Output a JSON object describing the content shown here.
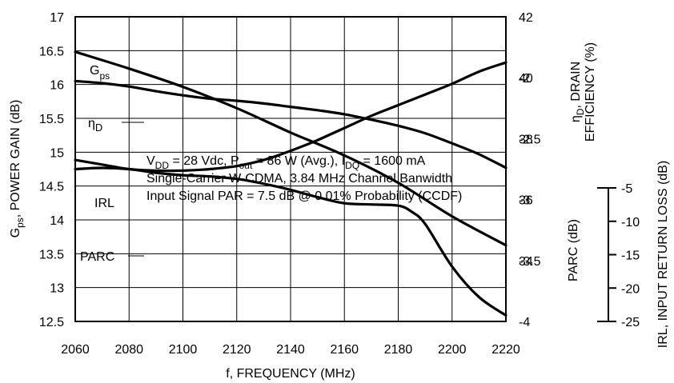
{
  "chart_data": {
    "type": "line",
    "xlabel": "f, FREQUENCY (MHz)",
    "x_ticks": [
      "2060",
      "2080",
      "2100",
      "2120",
      "2140",
      "2160",
      "2180",
      "2200",
      "2220"
    ],
    "xlim": [
      2060,
      2220
    ],
    "left_axis": {
      "label_main": "G",
      "label_sub": "ps",
      "label_rest": ", POWER GAIN (dB)",
      "ylim": [
        12.5,
        17
      ],
      "ticks": [
        "12.5",
        "13",
        "13.5",
        "14",
        "14.5",
        "15",
        "15.5",
        "16",
        "16.5",
        "17"
      ]
    },
    "right_axis_upper": {
      "label_line1_main": "η",
      "label_line1_sub": "D",
      "label_line1_rest": ", DRAIN",
      "label_line2": "EFFICIENCY (%)",
      "ylim": [
        32,
        42
      ],
      "ticks": [
        "34",
        "36",
        "38",
        "40",
        "42"
      ]
    },
    "right_axis_lower": {
      "label": "PARC (dB)",
      "ylim": [
        -4,
        -1.5
      ],
      "ticks": [
        "-2",
        "-2.5",
        "-3",
        "-3.5",
        "-4"
      ]
    },
    "irl_axis": {
      "label": "IRL, INPUT RETURN LOSS (dB)",
      "ylim": [
        -25,
        -5
      ],
      "ticks": [
        "-5",
        "-10",
        "-15",
        "-20",
        "-25"
      ]
    },
    "annotation": {
      "line1": {
        "a": "V",
        "a_sub": "DD",
        "b": " = 28 Vdc, P",
        "b_sub": "out",
        "c": " = 86 W (Avg.), I",
        "c_sub": "DQ",
        "d": " = 1600 mA"
      },
      "line2": "Single-Carrier W-CDMA, 3.84 MHz Channel Banwidth",
      "line3": "Input Signal PAR = 7.5 dB @ 0.01% Probability (CCDF)"
    },
    "series": [
      {
        "name": "G",
        "name_sub": "ps",
        "axis": "left",
        "x": [
          2060,
          2070,
          2080,
          2090,
          2100,
          2110,
          2120,
          2130,
          2140,
          2150,
          2160,
          2170,
          2180,
          2190,
          2200,
          2210,
          2220
        ],
        "values": [
          16.05,
          16.02,
          15.97,
          15.9,
          15.84,
          15.79,
          15.76,
          15.72,
          15.67,
          15.62,
          15.56,
          15.48,
          15.39,
          15.28,
          15.13,
          14.97,
          14.77
        ]
      },
      {
        "name": "η",
        "name_sub": "D",
        "axis": "right_upper",
        "x": [
          2060,
          2070,
          2080,
          2090,
          2100,
          2110,
          2120,
          2130,
          2140,
          2150,
          2160,
          2170,
          2180,
          2190,
          2200,
          2210,
          2220
        ],
        "values": [
          37.3,
          37.15,
          37.0,
          36.95,
          36.95,
          37.0,
          37.1,
          37.3,
          37.6,
          37.95,
          38.35,
          38.75,
          39.1,
          39.45,
          39.8,
          40.2,
          40.5
        ]
      },
      {
        "name": "IRL",
        "axis": "irl",
        "x": [
          2060,
          2080,
          2100,
          2120,
          2140,
          2160,
          2180,
          2200,
          2220
        ],
        "values": [
          -7.3,
          -8.4,
          -9.6,
          -11.0,
          -12.6,
          -14.1,
          -15.9,
          -18.1,
          -20.0
        ]
      },
      {
        "name": "PARC",
        "axis": "right_lower",
        "x": [
          2060,
          2070,
          2080,
          2090,
          2100,
          2110,
          2120,
          2130,
          2140,
          2150,
          2160,
          2170,
          2180,
          2185,
          2190,
          2200,
          2210,
          2220
        ],
        "values": [
          -2.75,
          -2.74,
          -2.75,
          -2.78,
          -2.8,
          -2.81,
          -2.83,
          -2.87,
          -2.92,
          -2.98,
          -3.03,
          -3.04,
          -3.05,
          -3.1,
          -3.2,
          -3.55,
          -3.8,
          -3.95
        ]
      }
    ]
  }
}
